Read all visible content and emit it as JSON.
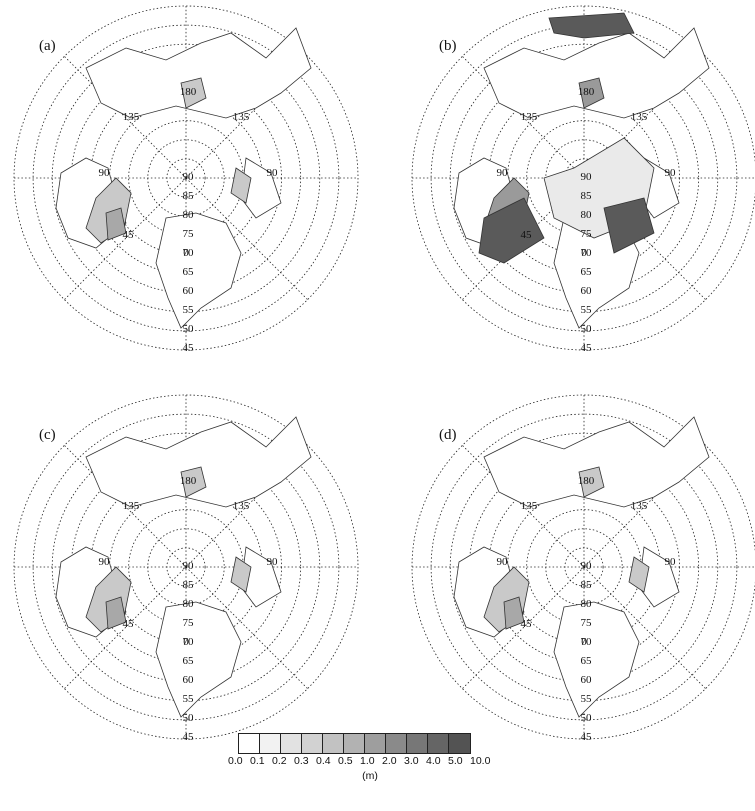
{
  "panels": [
    {
      "label": "(a)",
      "style": "light"
    },
    {
      "label": "(b)",
      "style": "heavy"
    },
    {
      "label": "(c)",
      "style": "light"
    },
    {
      "label": "(d)",
      "style": "light"
    }
  ],
  "map_labels": {
    "lon_180": "180",
    "lon_135": "135",
    "lon_90": "90",
    "lon_45": "45",
    "lon_0": "0",
    "latitudes": [
      "90",
      "85",
      "80",
      "75",
      "70",
      "65",
      "60",
      "55",
      "50",
      "45"
    ]
  },
  "colorbar": {
    "unit": "(m)",
    "levels": [
      "0.0",
      "0.1",
      "0.2",
      "0.3",
      "0.4",
      "0.5",
      "1.0",
      "2.0",
      "3.0",
      "4.0",
      "5.0",
      "10.0"
    ],
    "colors": [
      "#ffffff",
      "#f2f2f2",
      "#e2e2e2",
      "#d2d2d2",
      "#c2c2c2",
      "#b2b2b2",
      "#9e9e9e",
      "#8a8a8a",
      "#777777",
      "#656565",
      "#535353"
    ]
  }
}
